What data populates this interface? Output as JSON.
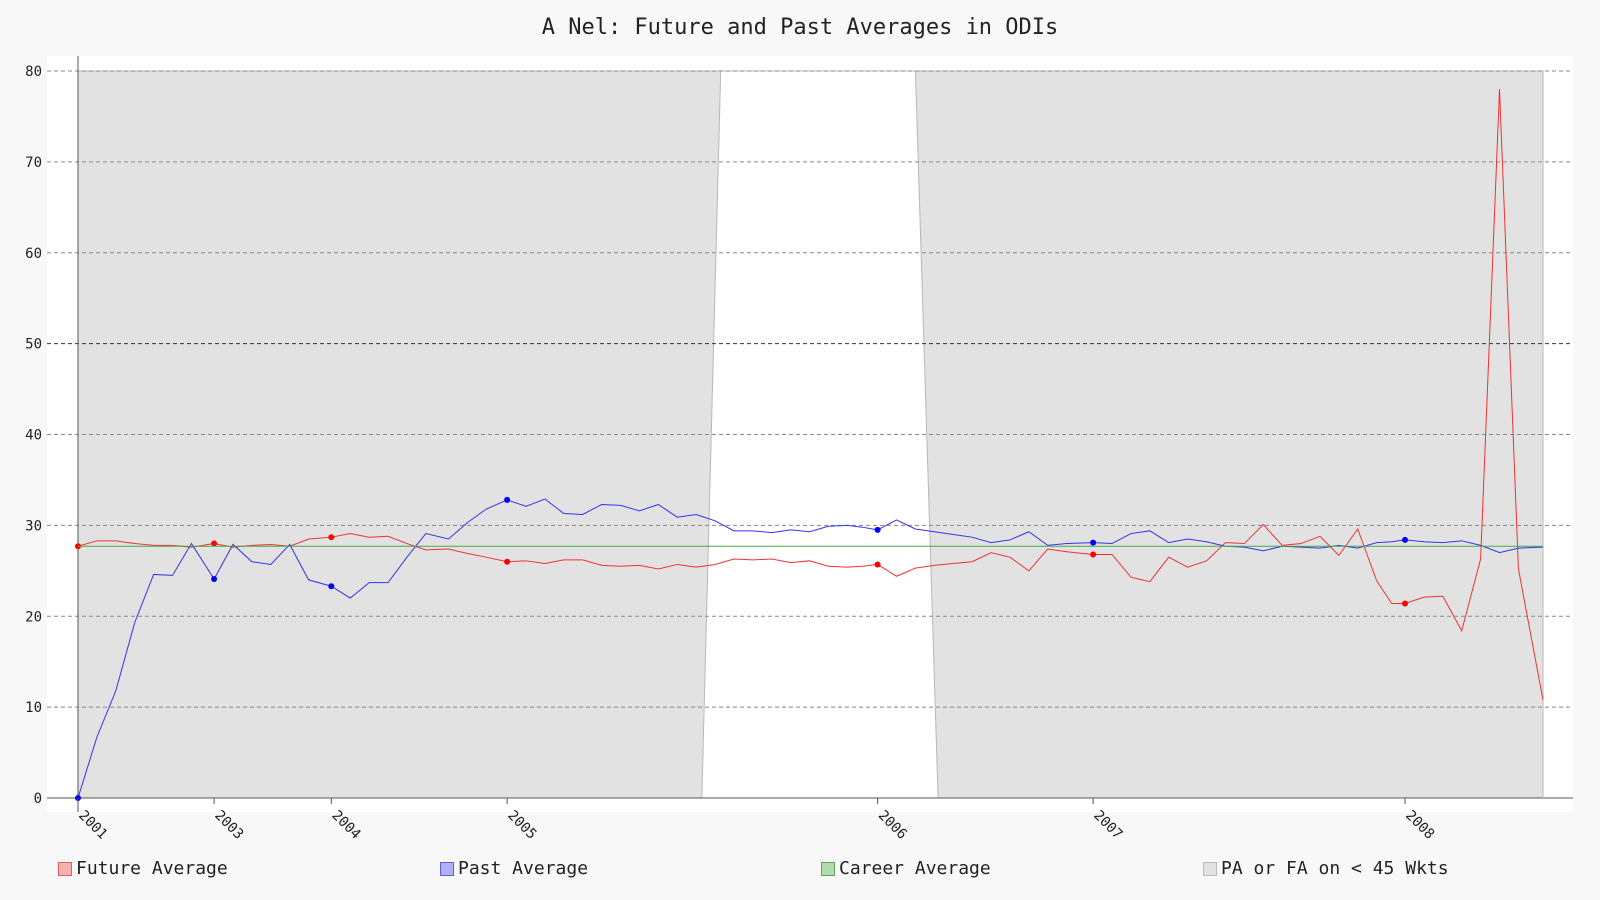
{
  "chart_data": {
    "type": "line",
    "title": "A Nel: Future and Past Averages in ODIs",
    "xlabel": "",
    "ylabel": "",
    "ylim": [
      0,
      80
    ],
    "yticks": [
      0,
      10,
      20,
      30,
      40,
      50,
      60,
      70,
      80
    ],
    "xlim": [
      2001.0,
      2008.75
    ],
    "xticks": [
      {
        "label": "2001",
        "x": 2001.0
      },
      {
        "label": "2003",
        "x": 2001.72
      },
      {
        "label": "2004",
        "x": 2002.34
      },
      {
        "label": "2005",
        "x": 2003.27
      },
      {
        "label": "2006",
        "x": 2005.23
      },
      {
        "label": "2007",
        "x": 2006.37
      },
      {
        "label": "2008",
        "x": 2008.02
      }
    ],
    "grid": true,
    "legend_position": "bottom",
    "series": [
      {
        "name": "Future Average",
        "color": "#ee3333",
        "x": [
          2001.0,
          2001.1,
          2001.2,
          2001.3,
          2001.4,
          2001.5,
          2001.6,
          2001.72,
          2001.82,
          2001.92,
          2002.02,
          2002.12,
          2002.22,
          2002.34,
          2002.44,
          2002.54,
          2002.64,
          2002.74,
          2002.84,
          2002.96,
          2003.06,
          2003.16,
          2003.27,
          2003.37,
          2003.47,
          2003.57,
          2003.67,
          2003.77,
          2003.87,
          2003.97,
          2004.07,
          2004.17,
          2004.27,
          2004.37,
          2004.47,
          2004.57,
          2004.67,
          2004.77,
          2004.87,
          2004.97,
          2005.07,
          2005.15,
          2005.23,
          2005.33,
          2005.43,
          2005.53,
          2005.63,
          2005.73,
          2005.83,
          2005.93,
          2006.03,
          2006.13,
          2006.23,
          2006.37,
          2006.47,
          2006.57,
          2006.67,
          2006.77,
          2006.87,
          2006.97,
          2007.07,
          2007.17,
          2007.27,
          2007.37,
          2007.47,
          2007.57,
          2007.67,
          2007.77,
          2007.87,
          2007.95,
          2008.02,
          2008.12,
          2008.22,
          2008.32,
          2008.42,
          2008.52,
          2008.62,
          2008.75
        ],
        "y": [
          27.7,
          28.3,
          28.3,
          28.0,
          27.8,
          27.8,
          27.6,
          28.0,
          27.6,
          27.8,
          27.9,
          27.7,
          28.5,
          28.7,
          29.1,
          28.7,
          28.8,
          28.0,
          27.3,
          27.4,
          26.9,
          26.5,
          26.0,
          26.1,
          25.8,
          26.2,
          26.2,
          25.6,
          25.5,
          25.6,
          25.2,
          25.7,
          25.4,
          25.7,
          26.3,
          26.2,
          26.3,
          25.9,
          26.1,
          25.5,
          25.4,
          25.5,
          25.7,
          24.4,
          25.3,
          25.6,
          25.8,
          26.0,
          27.0,
          26.5,
          25.0,
          27.4,
          27.1,
          26.8,
          26.8,
          24.3,
          23.8,
          26.5,
          25.4,
          26.1,
          28.1,
          28.0,
          30.1,
          27.8,
          28.0,
          28.8,
          26.7,
          29.6,
          23.9,
          21.4,
          21.4,
          22.1,
          22.2,
          18.4,
          26.3,
          78.0,
          25.2,
          10.8
        ],
        "markers": [
          0,
          7,
          13,
          22,
          42,
          53,
          70
        ]
      },
      {
        "name": "Past Average",
        "color": "#3333ee",
        "x": [
          2001.0,
          2001.1,
          2001.2,
          2001.3,
          2001.4,
          2001.5,
          2001.6,
          2001.72,
          2001.82,
          2001.92,
          2002.02,
          2002.12,
          2002.22,
          2002.34,
          2002.44,
          2002.54,
          2002.64,
          2002.74,
          2002.84,
          2002.96,
          2003.06,
          2003.16,
          2003.27,
          2003.37,
          2003.47,
          2003.57,
          2003.67,
          2003.77,
          2003.87,
          2003.97,
          2004.07,
          2004.17,
          2004.27,
          2004.37,
          2004.47,
          2004.57,
          2004.67,
          2004.77,
          2004.87,
          2004.97,
          2005.07,
          2005.15,
          2005.23,
          2005.33,
          2005.43,
          2005.53,
          2005.63,
          2005.73,
          2005.83,
          2005.93,
          2006.03,
          2006.13,
          2006.23,
          2006.37,
          2006.47,
          2006.57,
          2006.67,
          2006.77,
          2006.87,
          2006.97,
          2007.07,
          2007.17,
          2007.27,
          2007.37,
          2007.47,
          2007.57,
          2007.67,
          2007.77,
          2007.87,
          2007.95,
          2008.02,
          2008.12,
          2008.22,
          2008.32,
          2008.42,
          2008.52,
          2008.62,
          2008.75
        ],
        "y": [
          0.0,
          6.7,
          11.8,
          19.3,
          24.6,
          24.5,
          28.0,
          24.1,
          27.9,
          26.0,
          25.7,
          27.9,
          24.0,
          23.3,
          22.0,
          23.7,
          23.7,
          26.5,
          29.1,
          28.5,
          30.3,
          31.8,
          32.8,
          32.1,
          32.9,
          31.3,
          31.2,
          32.3,
          32.2,
          31.6,
          32.3,
          30.9,
          31.2,
          30.5,
          29.4,
          29.4,
          29.2,
          29.5,
          29.3,
          29.9,
          30.0,
          29.8,
          29.5,
          30.6,
          29.6,
          29.3,
          29.0,
          28.7,
          28.1,
          28.4,
          29.3,
          27.8,
          28.0,
          28.1,
          28.0,
          29.1,
          29.4,
          28.1,
          28.5,
          28.2,
          27.7,
          27.6,
          27.2,
          27.7,
          27.6,
          27.5,
          27.8,
          27.5,
          28.1,
          28.2,
          28.4,
          28.2,
          28.1,
          28.3,
          27.8,
          27.0,
          27.5,
          27.6
        ],
        "markers": [
          0,
          7,
          13,
          22,
          42,
          53,
          70
        ]
      },
      {
        "name": "Career Average",
        "color": "#44aa44",
        "x": [
          2001.0,
          2008.75
        ],
        "y": [
          27.7,
          27.7
        ]
      }
    ],
    "shaded_region": {
      "name": "PA or FA on < 45 Wkts",
      "fill": "#e2e2e2",
      "x": [
        2001.0,
        2004.3,
        2004.4,
        2005.43,
        2005.55,
        2008.75
      ],
      "top": [
        80,
        80,
        80,
        80,
        80,
        80
      ],
      "bottom": [
        0,
        0,
        80,
        80,
        0,
        0
      ]
    }
  },
  "legend": {
    "future": {
      "label": "Future Average",
      "fill": "#f6b0b0",
      "border": "#e06060"
    },
    "past": {
      "label": "Past Average",
      "fill": "#b0b0f4",
      "border": "#6060dd"
    },
    "career": {
      "label": "Career Average",
      "fill": "#b0dcb0",
      "border": "#60a060"
    },
    "shaded": {
      "label": "PA or FA on < 45 Wkts",
      "fill": "#e2e2e2",
      "border": "#bbbbbb"
    }
  }
}
